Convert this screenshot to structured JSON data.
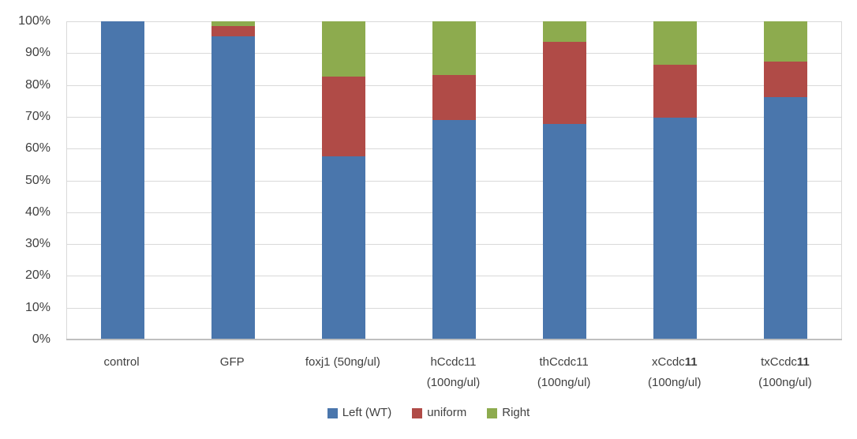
{
  "chart_data": {
    "type": "bar",
    "variant": "stacked-100-percent",
    "title": "",
    "xlabel": "",
    "ylabel": "",
    "ylim": [
      0,
      100
    ],
    "grid": true,
    "legend_position": "bottom",
    "y_ticks": [
      "0%",
      "10%",
      "20%",
      "30%",
      "40%",
      "50%",
      "60%",
      "70%",
      "80%",
      "90%",
      "100%"
    ],
    "categories": [
      "control",
      "GFP",
      "foxj1 (50ng/ul)",
      "hCcdc11 (100ng/ul)",
      "thCcdc11 (100ng/ul)",
      "xCcdc11 (100ng/ul)",
      "txCcdc11 (100ng/ul)"
    ],
    "category_label_lines": [
      [
        [
          "control"
        ]
      ],
      [
        [
          "GFP"
        ]
      ],
      [
        [
          "foxj1 (50ng/ul)"
        ]
      ],
      [
        [
          "hCcdc11"
        ],
        [
          "(100ng/ul)"
        ]
      ],
      [
        [
          "thCcdc11"
        ],
        [
          "(100ng/ul)"
        ]
      ],
      [
        [
          "xCcdc",
          {
            "b": "11"
          }
        ],
        [
          "(100ng/ul)"
        ]
      ],
      [
        [
          "txCcdc",
          {
            "b": "11"
          }
        ],
        [
          "(100ng/ul)"
        ]
      ]
    ],
    "series": [
      {
        "name": "Left (WT)",
        "color": "#4A76AC",
        "values": [
          100,
          95.3,
          57.5,
          69.1,
          67.7,
          69.7,
          76.3
        ]
      },
      {
        "name": "uniform",
        "color": "#B04B47",
        "values": [
          0,
          3.3,
          25.1,
          14.0,
          25.9,
          16.6,
          11.0
        ]
      },
      {
        "name": "Right",
        "color": "#8DAB4E",
        "values": [
          0,
          1.4,
          17.4,
          16.9,
          6.4,
          13.7,
          12.7
        ]
      }
    ],
    "colors": {
      "grid": "#D9D9D9",
      "axis_line": "#BFBFBF",
      "text": "#404040",
      "background": "#FFFFFF"
    }
  }
}
